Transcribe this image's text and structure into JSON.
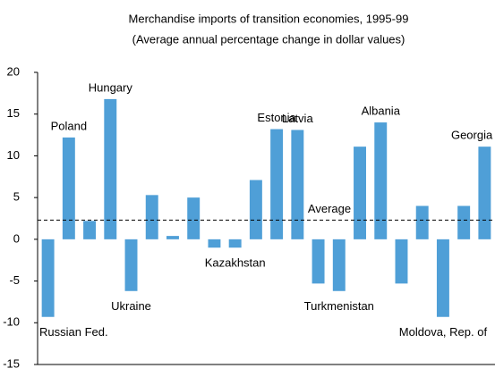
{
  "chart_data": {
    "type": "bar",
    "title": "Merchandise imports of transition economies, 1995-99",
    "subtitle": "(Average annual percentage change in dollar values)",
    "categories": [
      "Russian Fed.",
      "Poland",
      null,
      "Hungary",
      "Ukraine",
      null,
      null,
      null,
      null,
      "Kazakhstan",
      null,
      "Estonia",
      "Latvia",
      null,
      "Turkmenistan",
      null,
      "Albania",
      null,
      null,
      "Moldova, Rep. of",
      null,
      "Georgia"
    ],
    "values": [
      -9.3,
      12.2,
      2.2,
      16.8,
      -6.2,
      5.3,
      0.4,
      5.0,
      -1.0,
      -1.0,
      7.1,
      13.2,
      13.1,
      -5.3,
      -6.2,
      11.1,
      14.0,
      -5.3,
      4.0,
      -9.3,
      4.0,
      11.1
    ],
    "color": "#4f9fd7",
    "average": {
      "label": "Average",
      "value": 2.3
    },
    "ylim": [
      -15,
      20
    ],
    "yticks": [
      -15,
      -10,
      -5,
      0,
      5,
      10,
      15,
      20
    ],
    "grid": false
  }
}
